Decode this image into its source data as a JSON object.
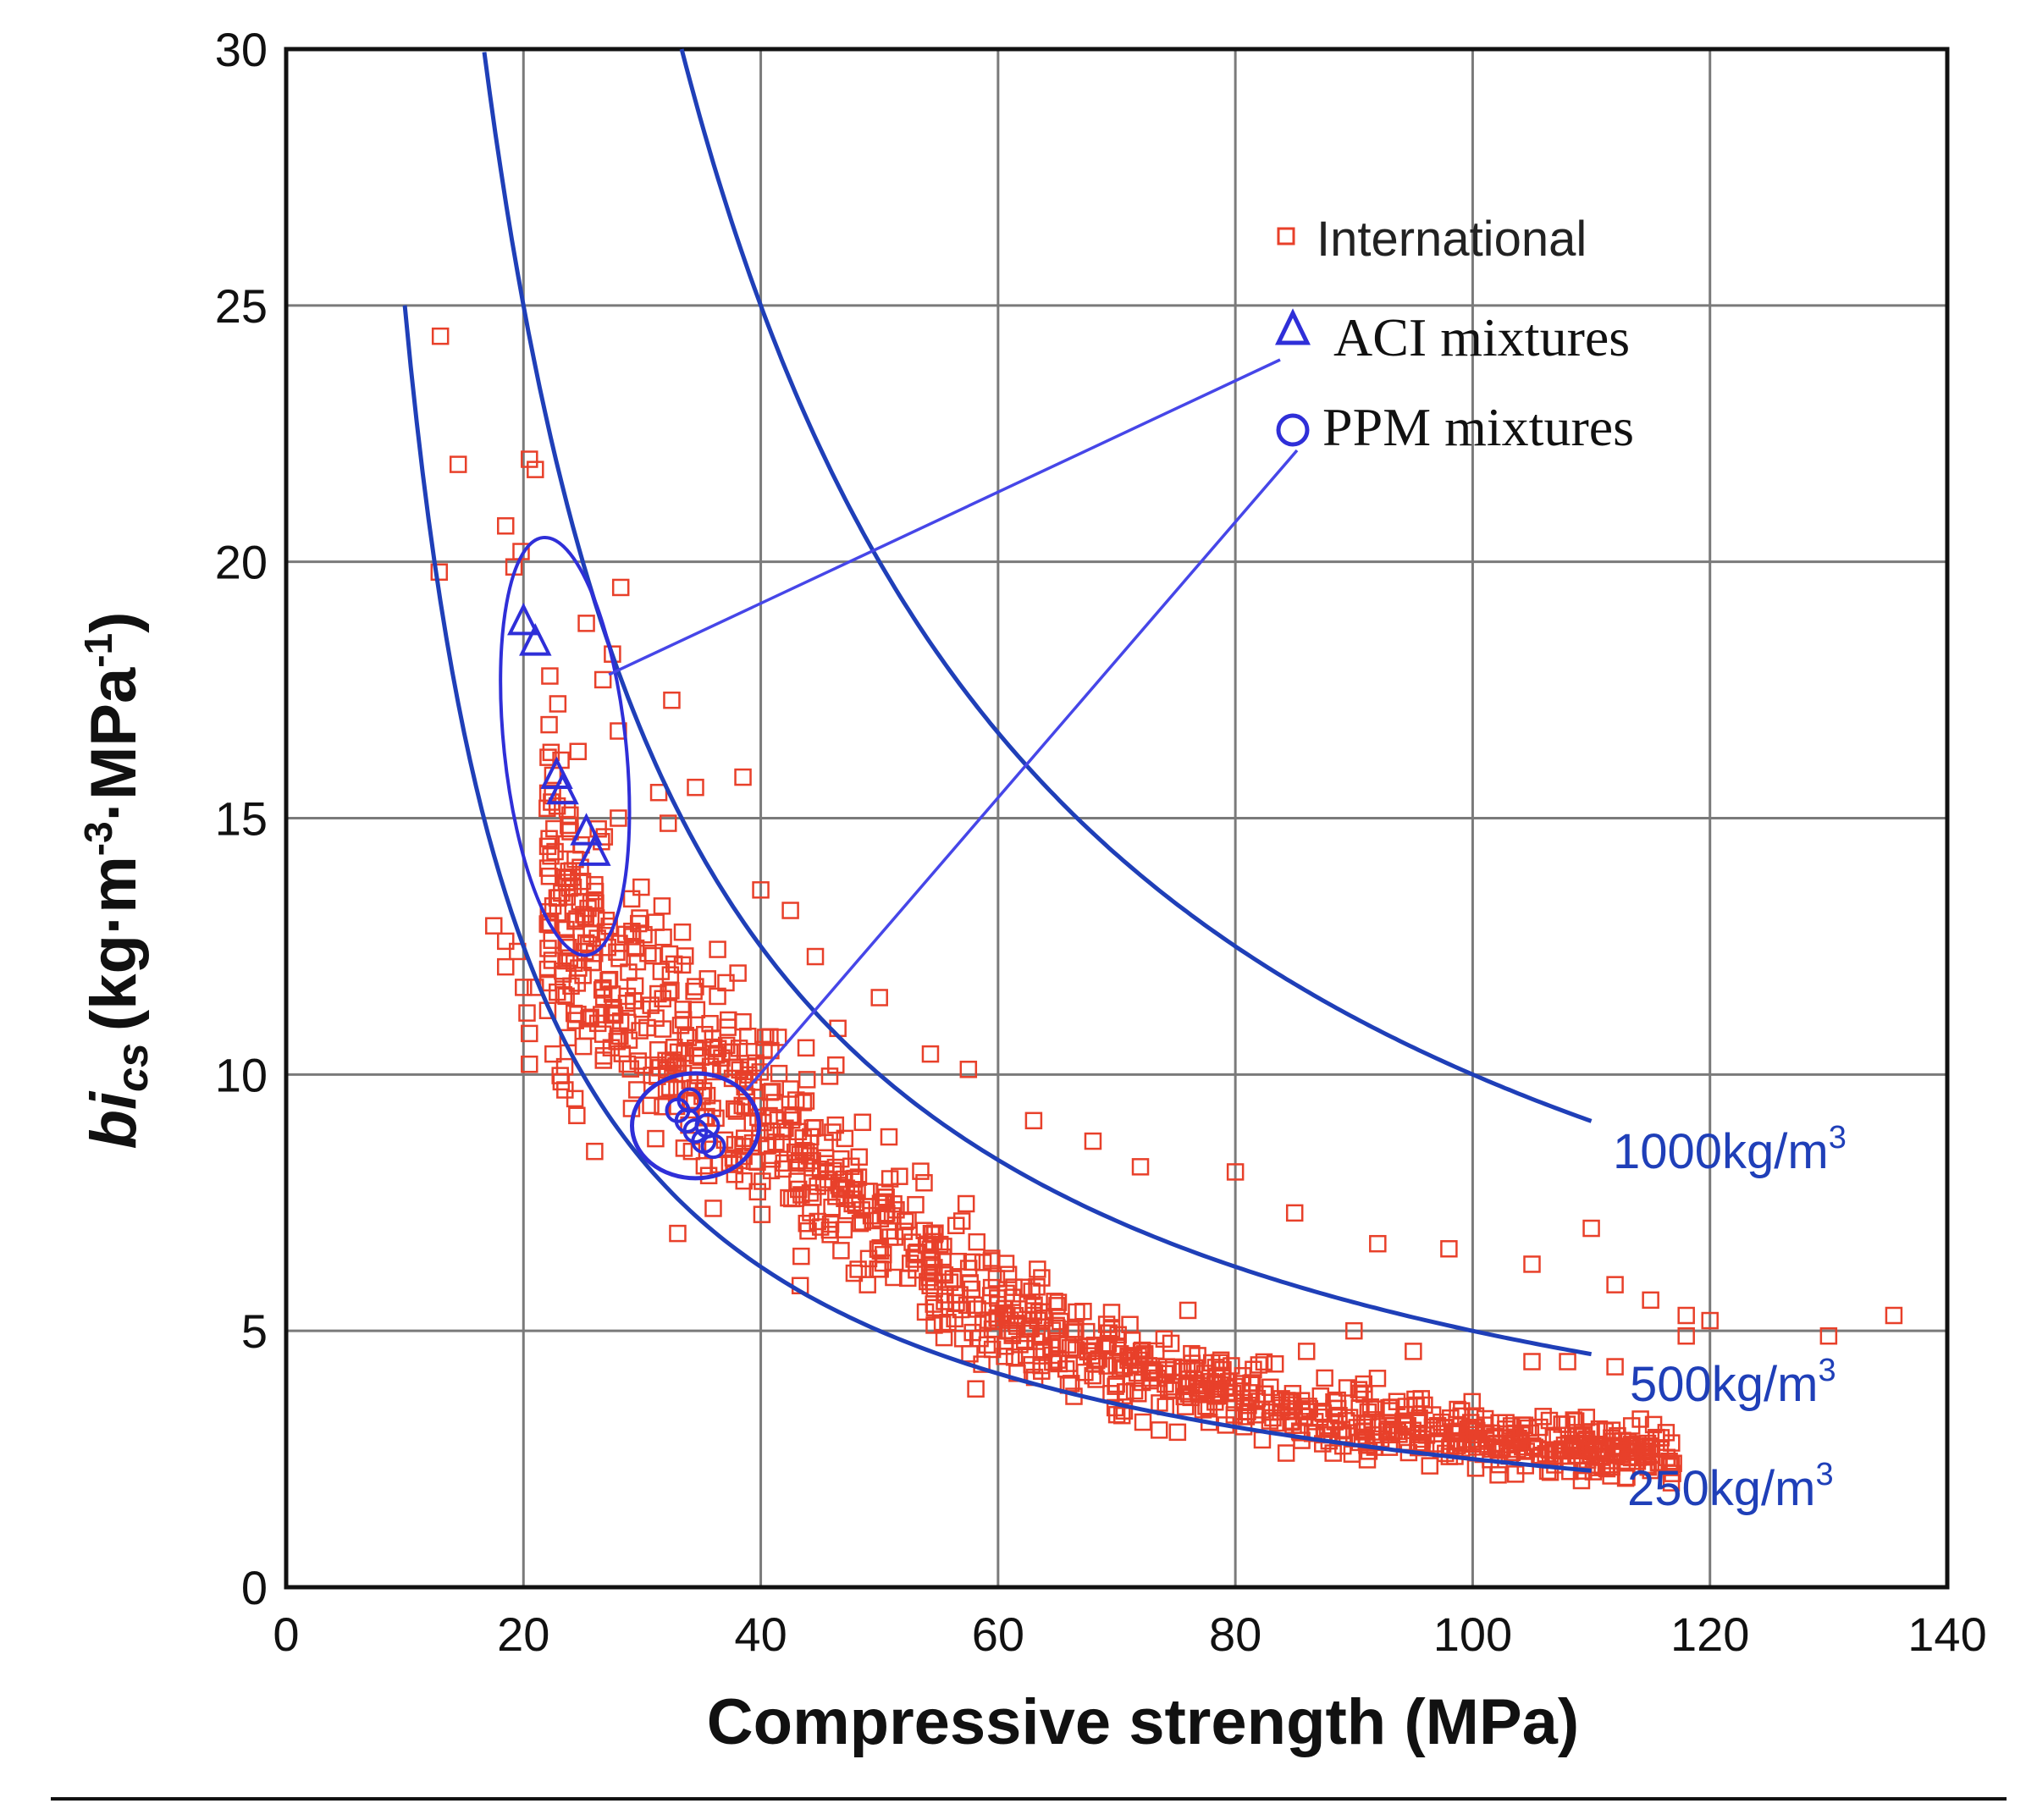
{
  "chart_data": {
    "type": "scatter",
    "xlabel": "Compressive strength (MPa)",
    "ylabel": {
      "main": "bi",
      "sub": "cs",
      "units": "(kg·m",
      "exp1": "-3",
      "mid": "·MPa",
      "exp2": "-1",
      "close": ")"
    },
    "xlim": [
      0,
      140
    ],
    "ylim": [
      0,
      30
    ],
    "x_ticks": [
      "0",
      "20",
      "40",
      "60",
      "80",
      "100",
      "120",
      "140"
    ],
    "y_ticks": [
      "0",
      "5",
      "10",
      "15",
      "20",
      "25",
      "30"
    ],
    "grid": true,
    "legend": {
      "placement": "top-right",
      "entries": [
        "International",
        "ACI mixtures",
        "PPM mixtures"
      ]
    },
    "curves": [
      {
        "label": "250kg/m",
        "sup": "3",
        "k": 250,
        "x_range": [
          10,
          110
        ]
      },
      {
        "label": "500kg/m",
        "sup": "3",
        "k": 500,
        "x_range": [
          16.7,
          110
        ]
      },
      {
        "label": "1000kg/m",
        "sup": "3",
        "k": 1000,
        "x_range": [
          33.3,
          110
        ]
      }
    ],
    "aci_mixtures": [
      {
        "x": 20,
        "y": 18.8
      },
      {
        "x": 21,
        "y": 18.4
      },
      {
        "x": 22.8,
        "y": 15.8
      },
      {
        "x": 23.3,
        "y": 15.5
      },
      {
        "x": 25.3,
        "y": 14.7
      },
      {
        "x": 26,
        "y": 14.3
      }
    ],
    "ppm_mixtures": [
      {
        "x": 33,
        "y": 9.3
      },
      {
        "x": 33.8,
        "y": 9.1
      },
      {
        "x": 34.5,
        "y": 8.9
      },
      {
        "x": 35.2,
        "y": 8.7
      },
      {
        "x": 36,
        "y": 8.6
      },
      {
        "x": 34,
        "y": 9.5
      },
      {
        "x": 35.5,
        "y": 9.0
      }
    ],
    "international_points": [
      [
        13,
        24.4
      ],
      [
        14.5,
        21.9
      ],
      [
        12.9,
        19.8
      ],
      [
        18.5,
        20.7
      ],
      [
        19.8,
        20.2
      ],
      [
        20.5,
        22
      ],
      [
        21,
        21.8
      ],
      [
        19.2,
        19.9
      ],
      [
        25.3,
        18.8
      ],
      [
        27.5,
        18.2
      ],
      [
        28.2,
        19.5
      ],
      [
        26.7,
        17.7
      ],
      [
        32.5,
        17.3
      ],
      [
        28,
        16.7
      ],
      [
        24.6,
        16.3
      ],
      [
        31.4,
        15.5
      ],
      [
        34.5,
        15.6
      ],
      [
        38.5,
        15.8
      ],
      [
        28,
        15
      ],
      [
        32.2,
        14.9
      ],
      [
        17.5,
        12.9
      ],
      [
        18.5,
        12.6
      ],
      [
        18.5,
        12.1
      ],
      [
        19.5,
        12.4
      ],
      [
        20,
        11.7
      ],
      [
        21,
        11.7
      ],
      [
        20.3,
        11.2
      ],
      [
        20.5,
        10.8
      ],
      [
        20.5,
        10.2
      ],
      [
        22.5,
        10.4
      ],
      [
        23.5,
        9.7
      ],
      [
        24.5,
        9.2
      ],
      [
        26,
        8.5
      ],
      [
        33,
        6.9
      ],
      [
        40,
        13.6
      ],
      [
        42.5,
        13.2
      ],
      [
        44.6,
        12.3
      ],
      [
        46.5,
        10.9
      ],
      [
        50,
        11.5
      ],
      [
        54.3,
        10.4
      ],
      [
        57.5,
        10.1
      ],
      [
        63,
        9.1
      ],
      [
        68,
        8.7
      ],
      [
        72,
        8.2
      ],
      [
        80,
        8.1
      ],
      [
        85,
        7.3
      ],
      [
        92,
        6.7
      ],
      [
        98,
        6.6
      ],
      [
        105,
        6.3
      ],
      [
        110,
        7
      ],
      [
        112,
        5.9
      ],
      [
        115,
        5.6
      ],
      [
        118,
        5.3
      ],
      [
        120,
        5.2
      ],
      [
        130,
        4.9
      ],
      [
        135.5,
        5.3
      ],
      [
        105,
        4.4
      ],
      [
        108,
        4.4
      ],
      [
        112,
        4.3
      ],
      [
        118,
        4.9
      ],
      [
        86,
        4.6
      ],
      [
        90,
        5
      ],
      [
        95,
        4.6
      ],
      [
        58,
        5.5
      ],
      [
        63,
        5.3
      ],
      [
        76,
        5.4
      ],
      [
        49,
        5.9
      ]
    ]
  }
}
